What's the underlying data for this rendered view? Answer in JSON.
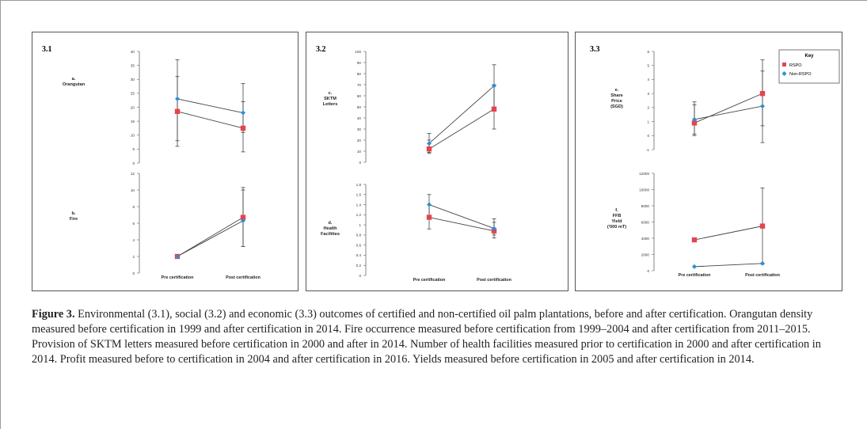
{
  "figure": {
    "caption_label": "Figure 3.",
    "caption_text": " Environmental (3.1), social (3.2) and economic (3.3) outcomes of certified and non-certified oil palm plantations, before and after certification. Orangutan density measured before certification in 1999 and after certification in 2014. Fire occurrence measured before certification from 1999–2004 and after certification from 2011–2015. Provision of SKTM letters measured before certification in 2000 and after in 2014. Number of health facilities measured prior to certification in 2000 and after certification in 2014. Profit measured before to certification in 2004 and after certification in 2016. Yields measured before certification in 2005 and after certification in 2014."
  },
  "colors": {
    "rspo": "#e8424b",
    "non_rspo": "#2b8fd6",
    "line": "#444444",
    "axis": "#666666"
  },
  "legend": {
    "title": "Key",
    "entries": [
      "RSPO",
      "Non-RSPO"
    ]
  },
  "chart_data": [
    {
      "panel": "3.1",
      "subplot": "a",
      "type": "line",
      "ylabel": [
        "a.",
        "Orangutan"
      ],
      "categories": [
        "Pre certification",
        "Post certification"
      ],
      "ylim": [
        0,
        40
      ],
      "yticks": [
        0,
        5,
        10,
        15,
        20,
        25,
        30,
        35,
        40
      ],
      "series": [
        {
          "name": "RSPO",
          "values": [
            18.5,
            12.5
          ],
          "err_low": [
            8,
            4
          ],
          "err_high": [
            31,
            22
          ]
        },
        {
          "name": "Non-RSPO",
          "values": [
            23,
            18
          ],
          "err_low": [
            6,
            11
          ],
          "err_high": [
            37,
            28.5
          ]
        }
      ]
    },
    {
      "panel": "3.1",
      "subplot": "b",
      "type": "line",
      "ylabel": [
        "b.",
        "Fire"
      ],
      "categories": [
        "Pre certification",
        "Post certification"
      ],
      "ylim": [
        0,
        12
      ],
      "yticks": [
        0,
        2,
        4,
        6,
        8,
        10,
        12
      ],
      "series": [
        {
          "name": "RSPO",
          "values": [
            2,
            6.7
          ],
          "err_low": [
            2,
            3.2
          ],
          "err_high": [
            2,
            10.3
          ]
        },
        {
          "name": "Non-RSPO",
          "values": [
            2,
            6.3
          ],
          "err_low": [
            2,
            3.2
          ],
          "err_high": [
            2,
            10
          ]
        }
      ]
    },
    {
      "panel": "3.2",
      "subplot": "c",
      "type": "line",
      "ylabel": [
        "c.",
        "SKTM",
        "Letters"
      ],
      "categories": [
        "Pre certification",
        "Post certification"
      ],
      "ylim": [
        0,
        100
      ],
      "yticks": [
        0,
        10,
        20,
        30,
        40,
        50,
        60,
        70,
        80,
        90,
        100
      ],
      "series": [
        {
          "name": "RSPO",
          "values": [
            12,
            48
          ],
          "err_low": [
            8,
            30
          ],
          "err_high": [
            20,
            70
          ]
        },
        {
          "name": "Non-RSPO",
          "values": [
            17,
            69
          ],
          "err_low": [
            9,
            48
          ],
          "err_high": [
            26,
            88
          ]
        }
      ]
    },
    {
      "panel": "3.2",
      "subplot": "d",
      "type": "line",
      "ylabel": [
        "d.",
        "Health",
        "Facilities"
      ],
      "categories": [
        "Pre certification",
        "Post certification"
      ],
      "ylim": [
        0,
        1.8
      ],
      "yticks": [
        0,
        0.2,
        0.4,
        0.6,
        0.8,
        1,
        1.2,
        1.4,
        1.6,
        1.8
      ],
      "series": [
        {
          "name": "RSPO",
          "values": [
            1.15,
            0.88
          ],
          "err_low": [
            0.92,
            0.74
          ],
          "err_high": [
            1.4,
            1.05
          ]
        },
        {
          "name": "Non-RSPO",
          "values": [
            1.4,
            0.93
          ],
          "err_low": [
            1.15,
            0.8
          ],
          "err_high": [
            1.6,
            1.12
          ]
        }
      ]
    },
    {
      "panel": "3.3",
      "subplot": "e",
      "type": "line",
      "ylabel": [
        "e.",
        "Share",
        "Price",
        "(SGD)"
      ],
      "categories": [
        "Pre certification",
        "Post certification"
      ],
      "ylim": [
        -1,
        6
      ],
      "yticks": [
        -1,
        0,
        1,
        2,
        3,
        4,
        5,
        6
      ],
      "series": [
        {
          "name": "RSPO",
          "values": [
            0.9,
            3
          ],
          "err_low": [
            0,
            -0.5
          ],
          "err_high": [
            2.2,
            5.4
          ]
        },
        {
          "name": "Non-RSPO",
          "values": [
            1.15,
            2.1
          ],
          "err_low": [
            0.1,
            0.7
          ],
          "err_high": [
            2.4,
            4.6
          ]
        }
      ]
    },
    {
      "panel": "3.3",
      "subplot": "f",
      "type": "line",
      "ylabel": [
        "f.",
        "FFB",
        "Yield",
        "('000 mT)"
      ],
      "categories": [
        "Pre certification",
        "Post certification"
      ],
      "ylim": [
        0,
        12000
      ],
      "yticks": [
        0,
        2000,
        4000,
        6000,
        8000,
        10000,
        12000
      ],
      "series": [
        {
          "name": "RSPO",
          "values": [
            3800,
            5500
          ],
          "err_low": [
            3800,
            800
          ],
          "err_high": [
            3800,
            10200
          ]
        },
        {
          "name": "Non-RSPO",
          "values": [
            500,
            900
          ],
          "err_low": [
            500,
            900
          ],
          "err_high": [
            500,
            900
          ]
        }
      ]
    }
  ],
  "panels": [
    {
      "title": "3.1"
    },
    {
      "title": "3.2"
    },
    {
      "title": "3.3"
    }
  ]
}
